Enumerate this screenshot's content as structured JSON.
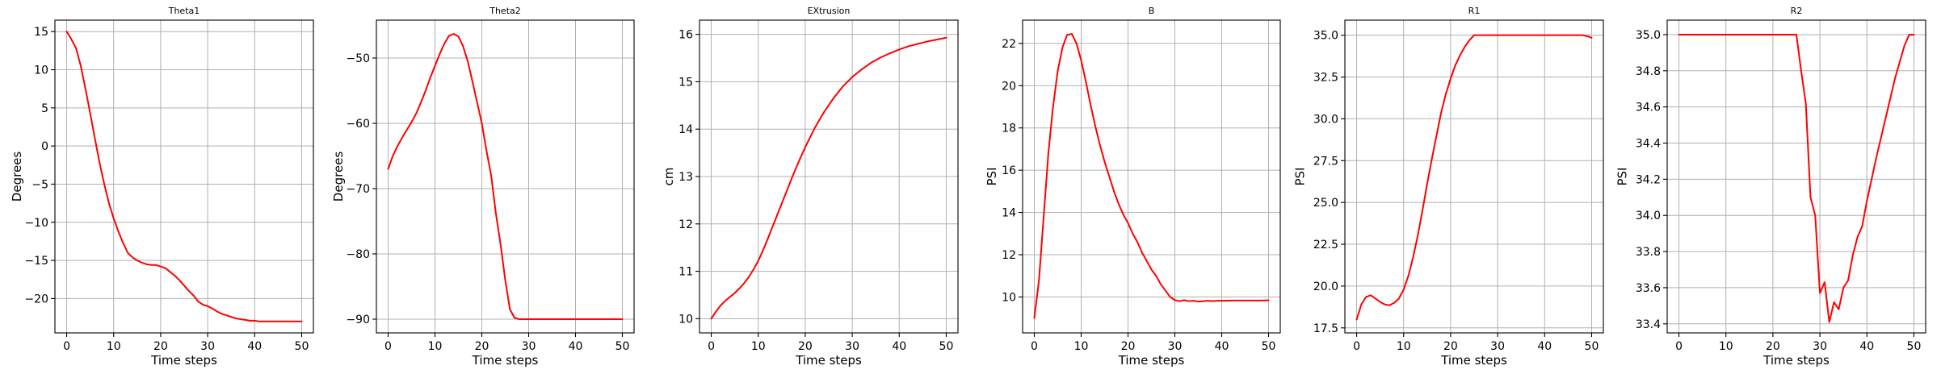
{
  "chart_data": [
    {
      "type": "line",
      "title": "Theta1",
      "xlabel": "Time steps",
      "ylabel": "Degrees",
      "xlim": [
        -2.5,
        52.5
      ],
      "ylim": [
        -24.5,
        16.5
      ],
      "xticks": [
        0,
        10,
        20,
        30,
        40,
        50
      ],
      "xtick_labels": [
        "0",
        "10",
        "20",
        "30",
        "40",
        "50"
      ],
      "yticks": [
        15,
        10,
        5,
        0,
        -5,
        -10,
        -15,
        -20
      ],
      "ytick_labels": [
        "15",
        "10",
        "5",
        "0",
        "−5",
        "−10",
        "−15",
        "−20"
      ],
      "grid": true,
      "line_color": "#ff0000",
      "series": [
        {
          "x": [
            0,
            1,
            2,
            3,
            4,
            5,
            6,
            7,
            8,
            9,
            10,
            11,
            12,
            13,
            14,
            15,
            16,
            17,
            18,
            19,
            20,
            21,
            22,
            23,
            24,
            25,
            26,
            27,
            28,
            29,
            30,
            31,
            32,
            33,
            34,
            35,
            36,
            37,
            38,
            39,
            40,
            41,
            42,
            43,
            44,
            45,
            46,
            47,
            48,
            49,
            50
          ],
          "y": [
            15,
            14,
            12.8,
            10.5,
            7.5,
            4.3,
            1,
            -2.2,
            -5,
            -7.5,
            -9.5,
            -11.2,
            -12.7,
            -14,
            -14.6,
            -15,
            -15.3,
            -15.5,
            -15.6,
            -15.6,
            -15.8,
            -16,
            -16.5,
            -17,
            -17.6,
            -18.3,
            -19,
            -19.6,
            -20.4,
            -20.8,
            -21,
            -21.3,
            -21.7,
            -22,
            -22.2,
            -22.4,
            -22.6,
            -22.7,
            -22.8,
            -22.9,
            -22.9,
            -23,
            -23,
            -23,
            -23,
            -23,
            -23,
            -23,
            -23,
            -23,
            -23
          ]
        }
      ]
    },
    {
      "type": "line",
      "title": "Theta2",
      "xlabel": "Time steps",
      "ylabel": "Degrees",
      "xlim": [
        -2.5,
        52.5
      ],
      "ylim": [
        -92.1,
        -44.2
      ],
      "xticks": [
        0,
        10,
        20,
        30,
        40,
        50
      ],
      "xtick_labels": [
        "0",
        "10",
        "20",
        "30",
        "40",
        "50"
      ],
      "yticks": [
        -50,
        -60,
        -70,
        -80,
        -90
      ],
      "ytick_labels": [
        "−50",
        "−60",
        "−70",
        "−80",
        "−90"
      ],
      "grid": true,
      "line_color": "#ff0000",
      "series": [
        {
          "x": [
            0,
            1,
            2,
            3,
            4,
            5,
            6,
            7,
            8,
            9,
            10,
            11,
            12,
            13,
            14,
            15,
            16,
            17,
            18,
            19,
            20,
            21,
            22,
            23,
            24,
            25,
            26,
            27,
            28,
            29,
            30,
            35,
            40,
            45,
            50
          ],
          "y": [
            -67,
            -65,
            -63.5,
            -62.2,
            -61,
            -59.8,
            -58.5,
            -56.8,
            -55,
            -53,
            -51.2,
            -49.4,
            -47.8,
            -46.6,
            -46.3,
            -46.7,
            -48.2,
            -50.5,
            -53.6,
            -56.8,
            -60,
            -64.2,
            -68,
            -73.8,
            -78.5,
            -84,
            -88.5,
            -89.8,
            -90,
            -90,
            -90,
            -90,
            -90,
            -90,
            -90
          ]
        }
      ]
    },
    {
      "type": "line",
      "title": "EXtrusion",
      "xlabel": "Time steps",
      "ylabel": "cm",
      "xlim": [
        -2.5,
        52.5
      ],
      "ylim": [
        9.7,
        16.3
      ],
      "xticks": [
        0,
        10,
        20,
        30,
        40,
        50
      ],
      "xtick_labels": [
        "0",
        "10",
        "20",
        "30",
        "40",
        "50"
      ],
      "yticks": [
        16,
        15,
        14,
        13,
        12,
        11,
        10
      ],
      "ytick_labels": [
        "16",
        "15",
        "14",
        "13",
        "12",
        "11",
        "10"
      ],
      "grid": true,
      "line_color": "#ff0000",
      "series": [
        {
          "x": [
            0,
            1,
            2,
            3,
            4,
            5,
            6,
            7,
            8,
            9,
            10,
            11,
            12,
            13,
            14,
            15,
            16,
            17,
            18,
            19,
            20,
            22,
            24,
            26,
            28,
            30,
            32,
            34,
            36,
            38,
            40,
            42,
            44,
            46,
            48,
            50
          ],
          "y": [
            10,
            10.15,
            10.28,
            10.38,
            10.46,
            10.54,
            10.64,
            10.75,
            10.88,
            11.04,
            11.22,
            11.44,
            11.68,
            11.93,
            12.18,
            12.43,
            12.68,
            12.93,
            13.17,
            13.4,
            13.62,
            14.02,
            14.36,
            14.65,
            14.9,
            15.1,
            15.26,
            15.4,
            15.51,
            15.6,
            15.68,
            15.75,
            15.8,
            15.85,
            15.89,
            15.93
          ]
        }
      ]
    },
    {
      "type": "line",
      "title": "B",
      "xlabel": "Time steps",
      "ylabel": "PSI",
      "xlim": [
        -2.5,
        52.5
      ],
      "ylim": [
        8.3,
        23.1
      ],
      "xticks": [
        0,
        10,
        20,
        30,
        40,
        50
      ],
      "xtick_labels": [
        "0",
        "10",
        "20",
        "30",
        "40",
        "50"
      ],
      "yticks": [
        22,
        20,
        18,
        16,
        14,
        12,
        10
      ],
      "ytick_labels": [
        "22",
        "20",
        "18",
        "16",
        "14",
        "12",
        "10"
      ],
      "grid": true,
      "line_color": "#ff0000",
      "series": [
        {
          "x": [
            0,
            1,
            2,
            3,
            4,
            5,
            6,
            7,
            8,
            9,
            10,
            11,
            12,
            13,
            14,
            15,
            16,
            17,
            18,
            19,
            20,
            21,
            22,
            23,
            24,
            25,
            26,
            27,
            28,
            29,
            30,
            31,
            32,
            33,
            34,
            35,
            36,
            37,
            38,
            39,
            40,
            42,
            44,
            46,
            48,
            50
          ],
          "y": [
            9,
            10.8,
            13.8,
            16.8,
            19,
            20.7,
            21.8,
            22.4,
            22.45,
            22,
            21.2,
            20.2,
            19.1,
            18.1,
            17.2,
            16.4,
            15.7,
            15,
            14.4,
            13.9,
            13.5,
            13,
            12.6,
            12.1,
            11.7,
            11.3,
            11,
            10.6,
            10.3,
            10,
            9.85,
            9.8,
            9.85,
            9.8,
            9.82,
            9.78,
            9.8,
            9.82,
            9.8,
            9.82,
            9.82,
            9.83,
            9.83,
            9.83,
            9.83,
            9.84
          ]
        }
      ]
    },
    {
      "type": "line",
      "title": "R1",
      "xlabel": "Time steps",
      "ylabel": "PSI",
      "xlim": [
        -2.5,
        52.5
      ],
      "ylim": [
        17.2,
        35.9
      ],
      "xticks": [
        0,
        10,
        20,
        30,
        40,
        50
      ],
      "xtick_labels": [
        "0",
        "10",
        "20",
        "30",
        "40",
        "50"
      ],
      "yticks": [
        35,
        32.5,
        30,
        27.5,
        25,
        22.5,
        20,
        17.5
      ],
      "ytick_labels": [
        "35.0",
        "32.5",
        "30.0",
        "27.5",
        "25.0",
        "22.5",
        "20.0",
        "17.5"
      ],
      "grid": true,
      "line_color": "#ff0000",
      "series": [
        {
          "x": [
            0,
            1,
            2,
            3,
            4,
            5,
            6,
            7,
            8,
            9,
            10,
            11,
            12,
            13,
            14,
            15,
            16,
            17,
            18,
            19,
            20,
            21,
            22,
            23,
            24,
            25,
            26,
            27,
            28,
            30,
            32,
            34,
            36,
            38,
            40,
            42,
            44,
            46,
            48,
            49,
            50
          ],
          "y": [
            18,
            18.9,
            19.35,
            19.45,
            19.25,
            19.05,
            18.9,
            18.85,
            19,
            19.25,
            19.8,
            20.6,
            21.7,
            23,
            24.5,
            26.1,
            27.6,
            29,
            30.4,
            31.5,
            32.4,
            33.2,
            33.8,
            34.3,
            34.7,
            35,
            35,
            35,
            35,
            35,
            35,
            35,
            35,
            35,
            35,
            35,
            35,
            35,
            35,
            34.95,
            34.85
          ]
        }
      ]
    },
    {
      "type": "line",
      "title": "R2",
      "xlabel": "Time steps",
      "ylabel": "PSI",
      "xlim": [
        -2.5,
        52.5
      ],
      "ylim": [
        33.35,
        35.08
      ],
      "xticks": [
        0,
        10,
        20,
        30,
        40,
        50
      ],
      "xtick_labels": [
        "0",
        "10",
        "20",
        "30",
        "40",
        "50"
      ],
      "yticks": [
        35,
        34.8,
        34.6,
        34.4,
        34.2,
        34,
        33.8,
        33.6,
        33.4
      ],
      "ytick_labels": [
        "35.0",
        "34.8",
        "34.6",
        "34.4",
        "34.2",
        "34.0",
        "33.8",
        "33.6",
        "33.4"
      ],
      "grid": true,
      "line_color": "#ff0000",
      "series": [
        {
          "x": [
            0,
            5,
            10,
            15,
            20,
            25,
            26,
            27,
            28,
            29,
            30,
            31,
            32,
            33,
            34,
            35,
            36,
            37,
            38,
            39,
            40,
            41,
            42,
            43,
            44,
            45,
            46,
            47,
            48,
            49,
            50
          ],
          "y": [
            35,
            35,
            35,
            35,
            35,
            35,
            34.8,
            34.62,
            34.1,
            34,
            33.57,
            33.63,
            33.41,
            33.52,
            33.48,
            33.6,
            33.64,
            33.78,
            33.88,
            33.94,
            34.08,
            34.2,
            34.32,
            34.43,
            34.54,
            34.65,
            34.76,
            34.85,
            34.94,
            35,
            35
          ]
        }
      ]
    }
  ]
}
